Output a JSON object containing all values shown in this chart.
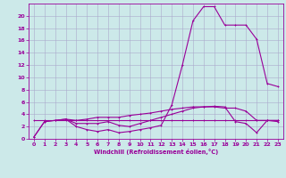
{
  "title": "",
  "xlabel": "Windchill (Refroidissement éolien,°C)",
  "background_color": "#cce9e9",
  "grid_color": "#aaaacc",
  "line_color": "#990099",
  "xlim": [
    -0.5,
    23.5
  ],
  "ylim": [
    0,
    22
  ],
  "xticks": [
    0,
    1,
    2,
    3,
    4,
    5,
    6,
    7,
    8,
    9,
    10,
    11,
    12,
    13,
    14,
    15,
    16,
    17,
    18,
    19,
    20,
    21,
    22,
    23
  ],
  "yticks": [
    0,
    2,
    4,
    6,
    8,
    10,
    12,
    14,
    16,
    18,
    20
  ],
  "line1_x": [
    0,
    1,
    2,
    3,
    4,
    5,
    6,
    7,
    8,
    9,
    10,
    11,
    12,
    13,
    14,
    15,
    16,
    17,
    18,
    19,
    20,
    21,
    22,
    23
  ],
  "line1_y": [
    0.3,
    2.8,
    3.0,
    3.2,
    2.0,
    1.5,
    1.2,
    1.5,
    1.0,
    1.2,
    1.5,
    1.8,
    2.2,
    5.5,
    12.0,
    19.2,
    21.5,
    21.5,
    18.5,
    18.5,
    18.5,
    16.2,
    9.0,
    8.5
  ],
  "line2_x": [
    0,
    1,
    2,
    3,
    4,
    5,
    6,
    7,
    8,
    9,
    10,
    11,
    12,
    13,
    14,
    15,
    16,
    17,
    18,
    19,
    20,
    21,
    22,
    23
  ],
  "line2_y": [
    3.0,
    3.0,
    3.0,
    3.0,
    3.0,
    3.0,
    3.0,
    3.0,
    3.0,
    3.0,
    3.0,
    3.0,
    3.0,
    3.0,
    3.0,
    3.0,
    3.0,
    3.0,
    3.0,
    3.0,
    3.0,
    3.0,
    3.0,
    3.0
  ],
  "line3_x": [
    0,
    1,
    2,
    3,
    4,
    5,
    6,
    7,
    8,
    9,
    10,
    11,
    12,
    13,
    14,
    15,
    16,
    17,
    18,
    19,
    20,
    21,
    22,
    23
  ],
  "line3_y": [
    0.3,
    2.8,
    3.0,
    3.2,
    3.0,
    3.2,
    3.5,
    3.5,
    3.5,
    3.8,
    4.0,
    4.2,
    4.5,
    4.8,
    5.0,
    5.2,
    5.2,
    5.2,
    5.0,
    5.0,
    4.5,
    3.0,
    3.0,
    3.0
  ],
  "line4_x": [
    3,
    4,
    5,
    6,
    7,
    8,
    9,
    10,
    11,
    12,
    13,
    14,
    15,
    16,
    17,
    18,
    19,
    20,
    21,
    22,
    23
  ],
  "line4_y": [
    3.2,
    2.5,
    2.5,
    2.5,
    2.8,
    2.2,
    2.0,
    2.5,
    3.0,
    3.5,
    4.0,
    4.5,
    5.0,
    5.2,
    5.3,
    5.2,
    2.8,
    2.5,
    1.0,
    3.0,
    2.8
  ]
}
